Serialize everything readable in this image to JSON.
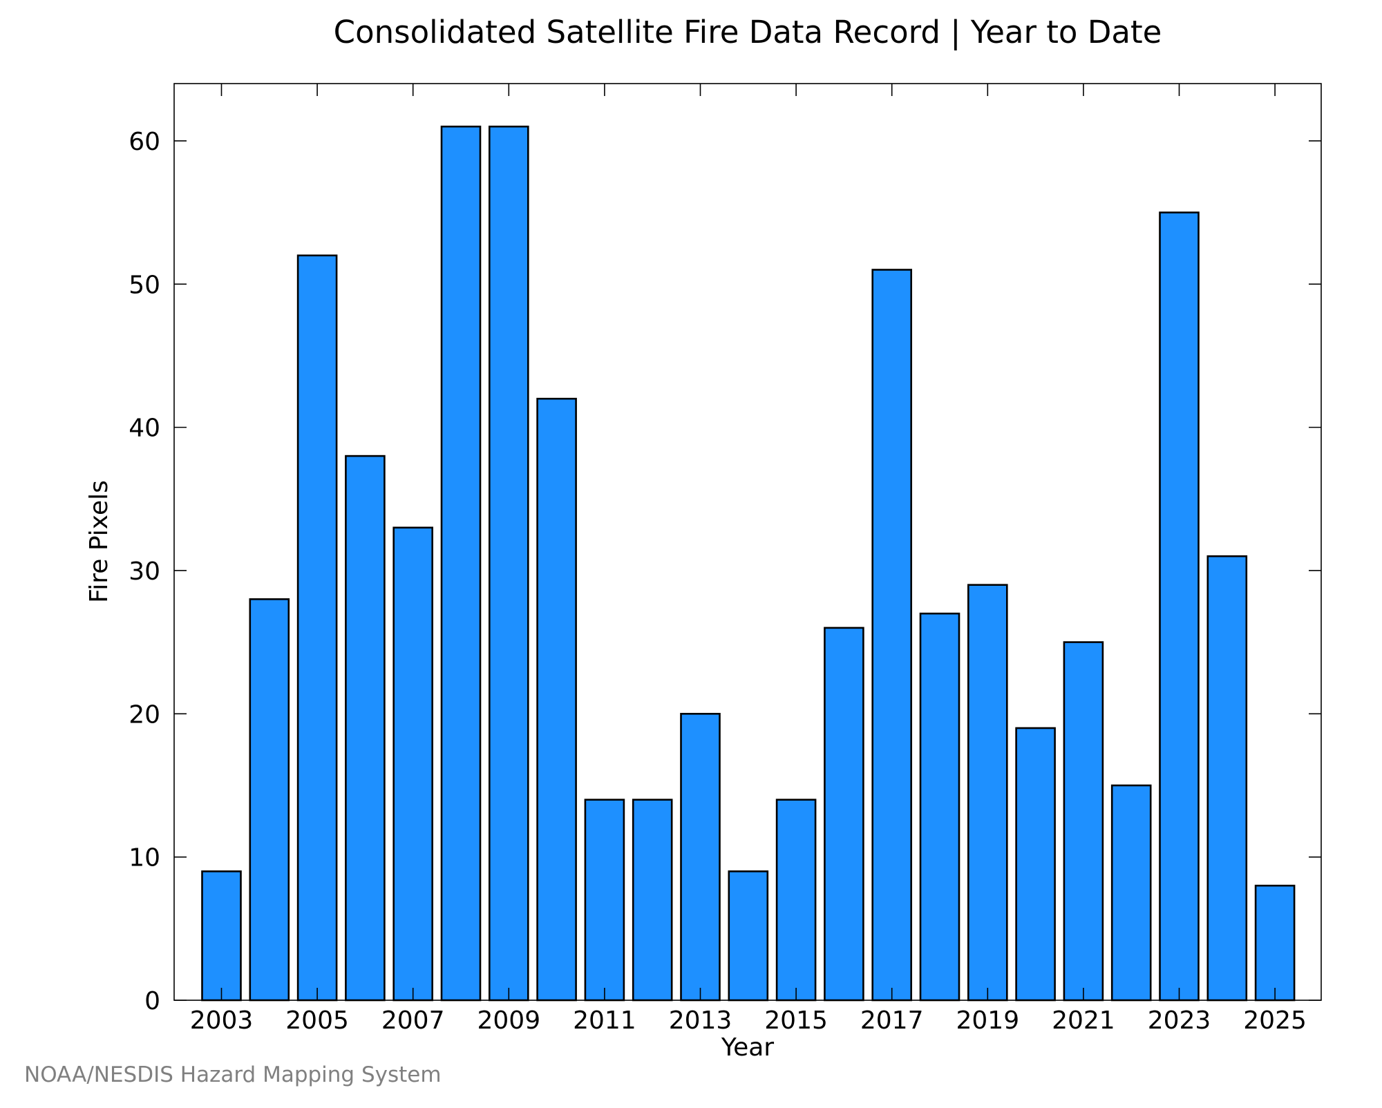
{
  "chart_data": {
    "type": "bar",
    "title": "Consolidated Satellite Fire Data Record | Year to Date",
    "xlabel": "Year",
    "ylabel": "Fire Pixels",
    "categories": [
      "2003",
      "2004",
      "2005",
      "2006",
      "2007",
      "2008",
      "2009",
      "2010",
      "2011",
      "2012",
      "2013",
      "2014",
      "2015",
      "2016",
      "2017",
      "2018",
      "2019",
      "2020",
      "2021",
      "2022",
      "2023",
      "2024",
      "2025"
    ],
    "values": [
      9,
      28,
      52,
      38,
      33,
      61,
      61,
      42,
      14,
      14,
      20,
      9,
      14,
      26,
      51,
      27,
      29,
      19,
      25,
      15,
      55,
      31,
      8
    ],
    "x_tick_labels": [
      "2003",
      "2005",
      "2007",
      "2009",
      "2011",
      "2013",
      "2015",
      "2017",
      "2019",
      "2021",
      "2023",
      "2025"
    ],
    "y_ticks": [
      0,
      10,
      20,
      30,
      40,
      50,
      60
    ],
    "ylim": [
      0,
      64
    ],
    "grid": false,
    "legend": "none",
    "bar_color": "#1E90FF",
    "bar_edge_color": "#000000"
  },
  "footer": {
    "credit": "NOAA/NESDIS Hazard Mapping System",
    "color": "#808080"
  }
}
